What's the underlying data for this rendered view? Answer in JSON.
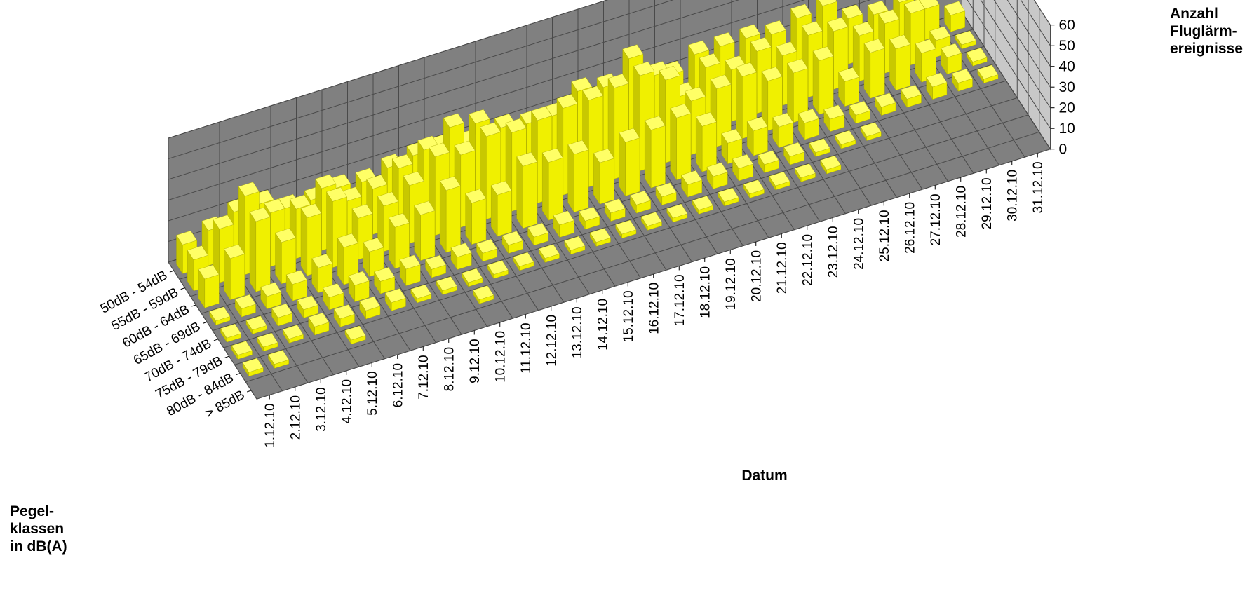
{
  "chart_data": {
    "type": "bar3d",
    "title": "",
    "xlabel": "Datum",
    "ylabel": "Pegel- klassen in dB(A)",
    "zlabel": "Anzahl Fluglärm- ereignisse",
    "ylabel_lines": [
      "Pegel-",
      "klassen",
      "in dB(A)"
    ],
    "zlabel_lines": [
      "Anzahl",
      "Fluglärm-",
      "ereignisse"
    ],
    "zlim": [
      0,
      60
    ],
    "zticks": [
      "0",
      "10",
      "20",
      "30",
      "40",
      "50",
      "60"
    ],
    "grid": true,
    "dates": [
      "1.12.10",
      "2.12.10",
      "3.12.10",
      "4.12.10",
      "5.12.10",
      "6.12.10",
      "7.12.10",
      "8.12.10",
      "9.12.10",
      "10.12.10",
      "11.12.10",
      "12.12.10",
      "13.12.10",
      "14.12.10",
      "15.12.10",
      "16.12.10",
      "17.12.10",
      "18.12.10",
      "19.12.10",
      "20.12.10",
      "21.12.10",
      "22.12.10",
      "23.12.10",
      "24.12.10",
      "25.12.10",
      "26.12.10",
      "27.12.10",
      "28.12.10",
      "29.12.10",
      "30.12.10",
      "31.12.10"
    ],
    "classes": [
      "50dB - 54dB",
      "55dB - 59dB",
      "60dB - 64dB",
      "65dB - 69dB",
      "70dB - 74dB",
      "75dB - 79dB",
      "80dB - 84dB",
      "> 85dB"
    ],
    "series": [
      {
        "name": "50dB - 54dB",
        "values": [
          14,
          17,
          22,
          22,
          16,
          16,
          18,
          17,
          20,
          22,
          22,
          20,
          18,
          16,
          16,
          16,
          18,
          16,
          18,
          22,
          28,
          28,
          28,
          26,
          30,
          32,
          22,
          20,
          22,
          15,
          8
        ]
      },
      {
        "name": "55dB - 59dB",
        "values": [
          15,
          26,
          38,
          26,
          24,
          30,
          20,
          22,
          28,
          33,
          40,
          38,
          32,
          30,
          30,
          38,
          36,
          46,
          34,
          20,
          30,
          25,
          30,
          24,
          30,
          28,
          22,
          24,
          25,
          8,
          2
        ]
      },
      {
        "name": "60dB - 64dB",
        "values": [
          14,
          20,
          34,
          20,
          28,
          32,
          20,
          22,
          28,
          38,
          35,
          40,
          38,
          40,
          42,
          42,
          44,
          46,
          40,
          26,
          28,
          30,
          24,
          24,
          26,
          12,
          22,
          20,
          14,
          8,
          2
        ]
      },
      {
        "name": "65dB - 69dB",
        "values": [
          2,
          4,
          6,
          8,
          12,
          18,
          12,
          20,
          22,
          30,
          20,
          20,
          30,
          28,
          28,
          20,
          26,
          28,
          30,
          22,
          10,
          12,
          10,
          8,
          6,
          4,
          4,
          4,
          6,
          4,
          2
        ]
      },
      {
        "name": "70dB - 74dB",
        "values": [
          2,
          2,
          4,
          4,
          6,
          8,
          6,
          8,
          4,
          6,
          4,
          4,
          4,
          6,
          4,
          4,
          4,
          4,
          6,
          6,
          6,
          4,
          4,
          2,
          2,
          2,
          0,
          0,
          0,
          0,
          0
        ]
      },
      {
        "name": "75dB - 79dB",
        "values": [
          2,
          2,
          2,
          4,
          4,
          4,
          4,
          2,
          2,
          2,
          2,
          2,
          2,
          2,
          2,
          2,
          2,
          2,
          2,
          2,
          2,
          2,
          2,
          2,
          0,
          0,
          0,
          0,
          0,
          0,
          0
        ]
      },
      {
        "name": "80dB - 84dB",
        "values": [
          2,
          2,
          0,
          0,
          2,
          0,
          0,
          0,
          0,
          2,
          0,
          0,
          0,
          0,
          0,
          0,
          0,
          0,
          0,
          0,
          0,
          0,
          0,
          0,
          0,
          0,
          0,
          0,
          0,
          0,
          0
        ]
      },
      {
        "name": "> 85dB",
        "values": [
          0,
          0,
          0,
          0,
          0,
          0,
          0,
          0,
          0,
          0,
          0,
          0,
          0,
          0,
          0,
          0,
          0,
          0,
          0,
          0,
          0,
          0,
          0,
          0,
          0,
          0,
          0,
          0,
          0,
          0,
          0
        ]
      }
    ],
    "colors": {
      "bar_front": "#f0f000",
      "bar_top": "#ffff66",
      "bar_side": "#c8c800",
      "floor": "#808080",
      "back_wall": "#808080",
      "side_wall": "#c8c8c8",
      "grid": "#4a4a4a"
    }
  }
}
